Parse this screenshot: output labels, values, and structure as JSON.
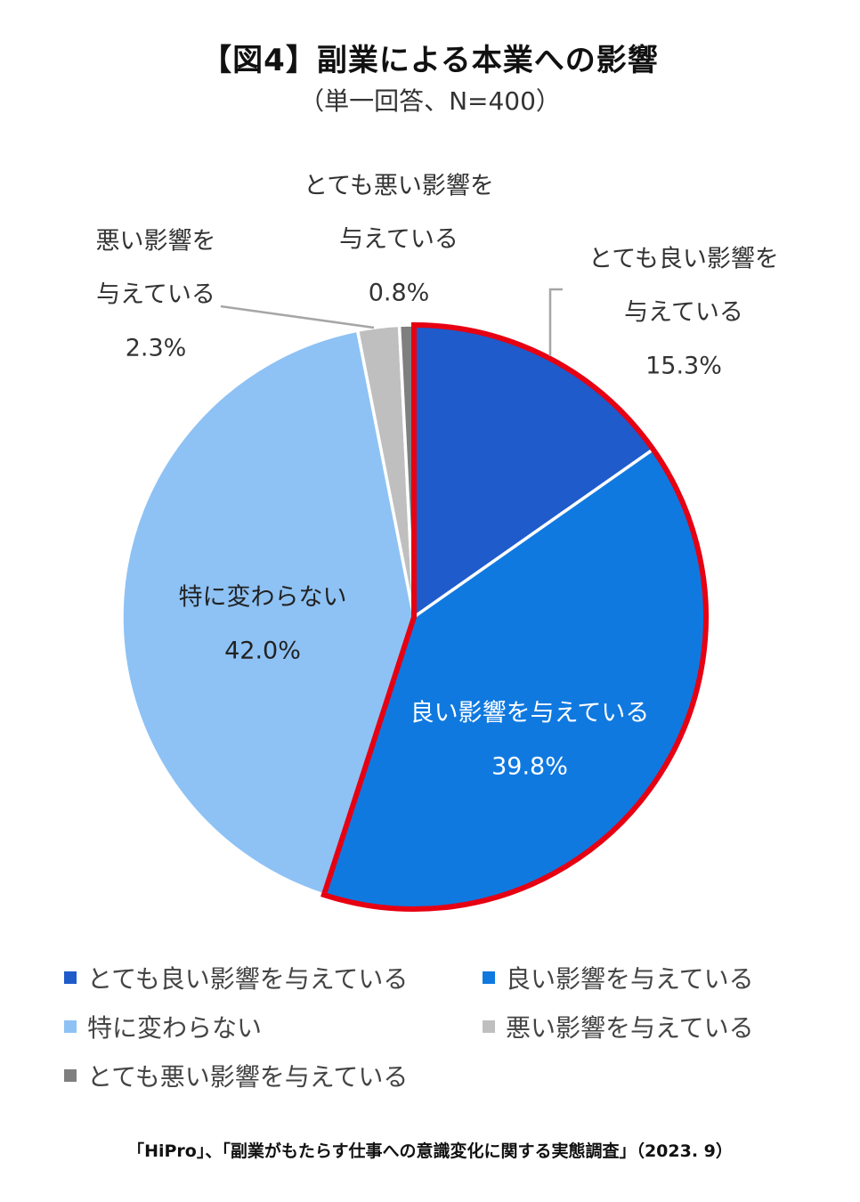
{
  "title": "【図4】副業による本業への影響",
  "subtitle": "（単一回答、N=400）",
  "source": "「HiPro」、「副業がもたらす仕事への意識変化に関する実態調査」（2023. 9）",
  "colors": {
    "very_good": "#1F5BCB",
    "good": "#1079E0",
    "no_change": "#8EC2F5",
    "bad": "#BFBFBF",
    "very_bad": "#7F7F7F",
    "highlight": "#E60012"
  },
  "chart_data": {
    "type": "pie",
    "title": "【図4】副業による本業への影響",
    "subtitle": "（単一回答、N=400）",
    "start": "12 o'clock, clockwise",
    "highlighted_slices": [
      "とても良い影響を与えている",
      "良い影響を与えている"
    ],
    "legend_position": "bottom",
    "slices": [
      {
        "name": "とても良い影響を与えている",
        "value": 15.3,
        "display": "15.3%",
        "label_lines": [
          "とても良い影響を",
          "与えている"
        ],
        "color": "#1F5BCB"
      },
      {
        "name": "良い影響を与えている",
        "value": 39.8,
        "display": "39.8%",
        "label_lines": [
          "良い影響を与えている"
        ],
        "color": "#1079E0"
      },
      {
        "name": "特に変わらない",
        "value": 42.0,
        "display": "42.0%",
        "label_lines": [
          "特に変わらない"
        ],
        "color": "#8EC2F5"
      },
      {
        "name": "悪い影響を与えている",
        "value": 2.3,
        "display": "2.3%",
        "label_lines": [
          "悪い影響を",
          "与えている"
        ],
        "color": "#BFBFBF"
      },
      {
        "name": "とても悪い影響を与えている",
        "value": 0.8,
        "display": "0.8%",
        "label_lines": [
          "とても悪い影響を",
          "与えている"
        ],
        "color": "#7F7F7F"
      }
    ]
  }
}
